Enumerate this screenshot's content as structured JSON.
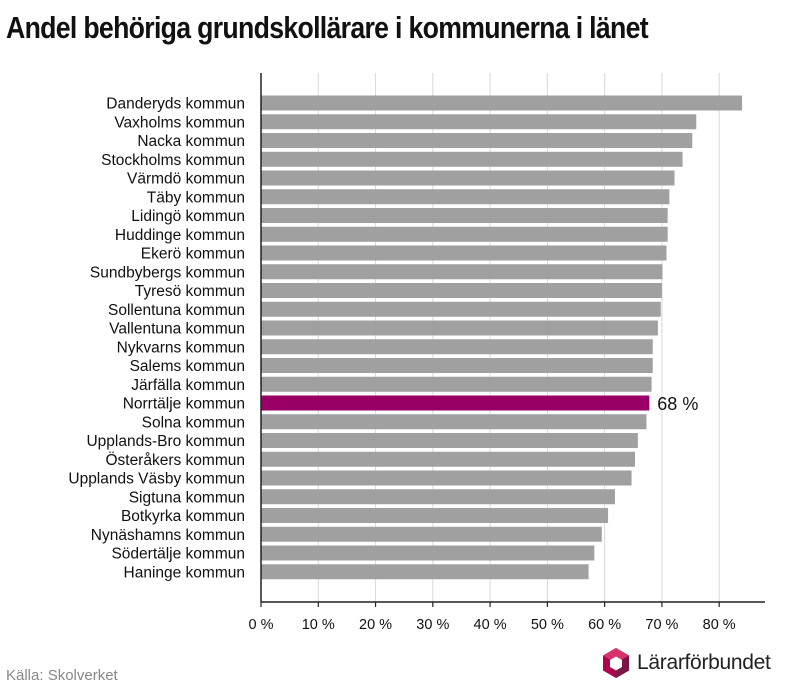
{
  "title": "Andel behöriga grundskollärare i kommunerna i länet",
  "source": "Källa: Skolverket",
  "logo_text": "Lärarförbundet",
  "colors": {
    "bar": "#a0a0a0",
    "highlight": "#990066",
    "grid": "#d8d8d8",
    "axis": "#222222"
  },
  "chart_data": {
    "type": "bar",
    "orientation": "horizontal",
    "categories": [
      "Danderyds kommun",
      "Vaxholms kommun",
      "Nacka kommun",
      "Stockholms kommun",
      "Värmdö kommun",
      "Täby kommun",
      "Lidingö kommun",
      "Huddinge kommun",
      "Ekerö kommun",
      "Sundbybergs kommun",
      "Tyresö kommun",
      "Sollentuna kommun",
      "Vallentuna kommun",
      "Nykvarns kommun",
      "Salems kommun",
      "Järfälla kommun",
      "Norrtälje kommun",
      "Solna kommun",
      "Upplands-Bro kommun",
      "Österåkers kommun",
      "Upplands Väsby kommun",
      "Sigtuna kommun",
      "Botkyrka kommun",
      "Nynäshamns kommun",
      "Södertälje kommun",
      "Haninge kommun"
    ],
    "values": [
      84,
      76,
      75.3,
      73.6,
      72.2,
      71.3,
      71,
      71,
      70.8,
      70.1,
      70,
      69.8,
      69.3,
      68.4,
      68.4,
      68.2,
      67.8,
      67.3,
      65.8,
      65.3,
      64.7,
      61.8,
      60.6,
      59.5,
      58.2,
      57.2
    ],
    "highlight_index": 16,
    "highlight_label": "68 %",
    "xlim": [
      0,
      88
    ],
    "ticks": [
      0,
      10,
      20,
      30,
      40,
      50,
      60,
      70,
      80
    ],
    "tick_labels": [
      "0 %",
      "10 %",
      "20 %",
      "30 %",
      "40 %",
      "50 %",
      "60 %",
      "70 %",
      "80 %"
    ],
    "grid": true
  }
}
